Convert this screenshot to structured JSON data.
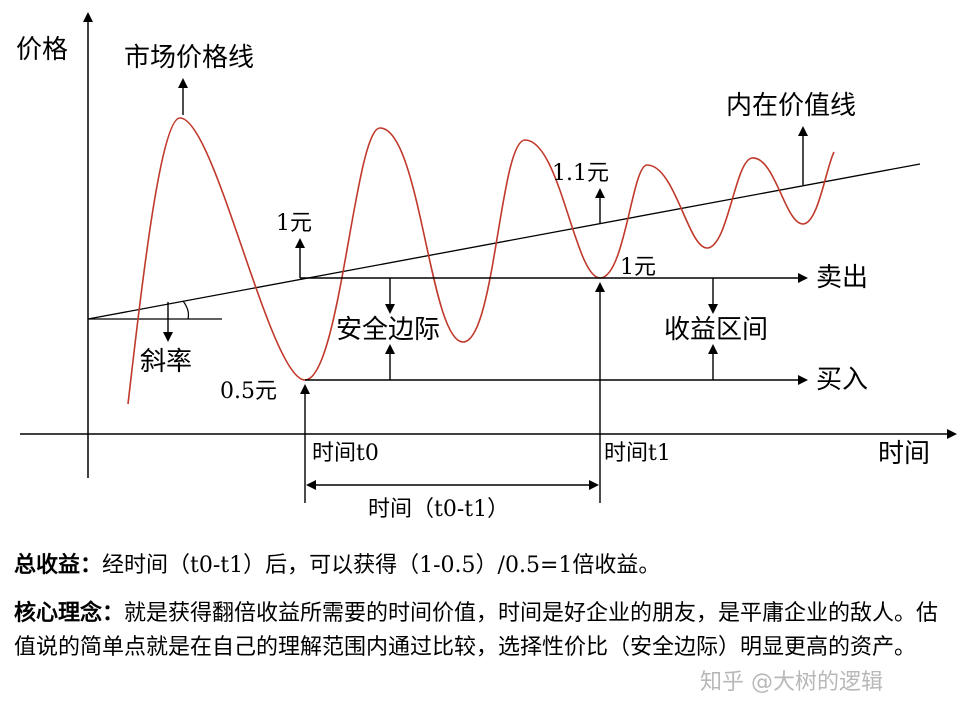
{
  "diagram": {
    "y_axis_label": "价格",
    "x_axis_label": "时间",
    "market_line_label": "市场价格线",
    "intrinsic_line_label": "内在价值线",
    "slope_label": "斜率",
    "price_1yuan_left": "1元",
    "price_1yuan_right": "1元",
    "price_05yuan": "0.5元",
    "price_11yuan": "1.1元",
    "sell_label": "卖出",
    "buy_label": "买入",
    "margin_label": "安全边际",
    "profit_range_label": "收益区间",
    "time_t0": "时间t0",
    "time_t1": "时间t1",
    "time_span": "时间（t0-t1）",
    "colors": {
      "market_line": "#c0392b",
      "lines": "#000000"
    }
  },
  "captions": {
    "total_head": "总收益：",
    "total_text": "经时间（t0-t1）后，可以获得（1-0.5）/0.5=1倍收益。",
    "core_head": "核心理念：",
    "core_text": "就是获得翻倍收益所需要的时间价值，时间是好企业的朋友，是平庸企业的敌人。估值说的简单点就是在自己的理解范围内通过比较，选择性价比（安全边际）明显更高的资产。"
  },
  "watermark": "知乎 @大树的逻辑"
}
